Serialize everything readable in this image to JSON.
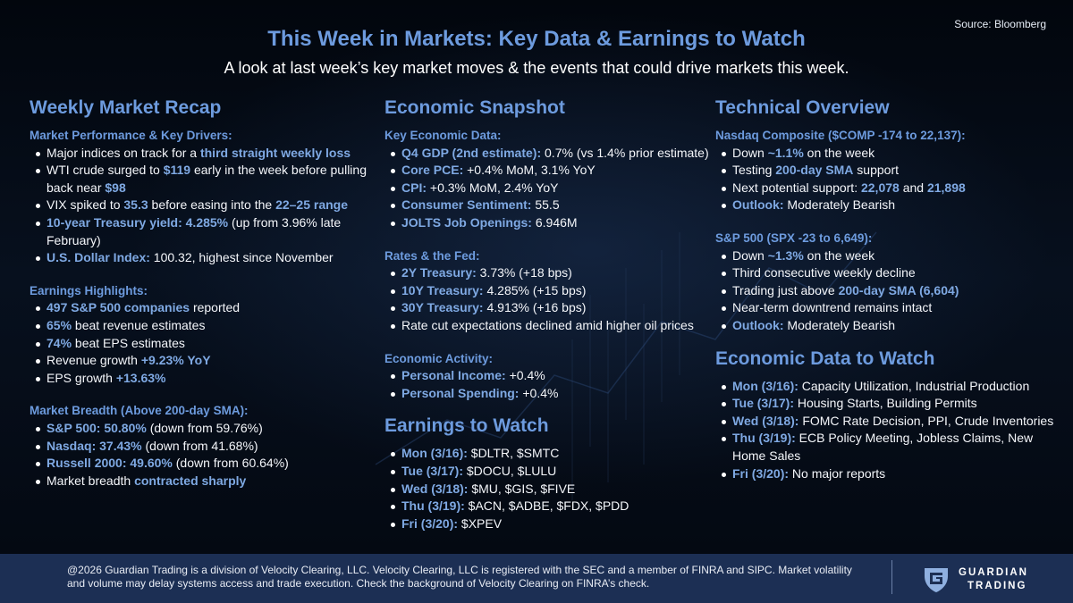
{
  "source": "Source: Bloomberg",
  "title": "This Week in Markets: Key Data & Earnings to Watch",
  "subtitle": "A look at last week’s key market moves & the events that could drive markets this week.",
  "recap": {
    "heading": "Weekly Market Recap",
    "performance": {
      "label": "Market Performance & Key Drivers:",
      "b1": {
        "t1": "Major indices on track for a ",
        "h1": "third straight weekly loss"
      },
      "b2": {
        "t1": "WTI crude surged to ",
        "h1": "$119",
        "t2": " early in the week before pulling back near ",
        "h2": "$98"
      },
      "b3": {
        "t1": "VIX spiked to ",
        "h1": "35.3",
        "t2": " before easing into the ",
        "h2": "22–25 range"
      },
      "b4": {
        "h1": "10-year Treasury yield: 4.285%",
        "t1": " (up from 3.96% late February)"
      },
      "b5": {
        "h1": "U.S. Dollar Index:",
        "t1": " 100.32, highest since November"
      }
    },
    "earnings": {
      "label": "Earnings Highlights:",
      "b1": {
        "h1": "497 S&P 500 companies",
        "t1": " reported"
      },
      "b2": {
        "h1": "65%",
        "t1": " beat revenue estimates"
      },
      "b3": {
        "h1": "74%",
        "t1": " beat EPS estimates"
      },
      "b4": {
        "t1": "Revenue growth ",
        "h1": "+9.23% YoY"
      },
      "b5": {
        "t1": "EPS growth ",
        "h1": "+13.63%"
      }
    },
    "breadth": {
      "label": "Market Breadth (Above 200-day SMA):",
      "b1": {
        "h1": "S&P 500: 50.80%",
        "t1": " (down from 59.76%)"
      },
      "b2": {
        "h1": "Nasdaq: 37.43%",
        "t1": " (down from 41.68%)"
      },
      "b3": {
        "h1": "Russell 2000: 49.60%",
        "t1": " (down from 60.64%)"
      },
      "b4": {
        "t1": "Market breadth ",
        "h1": "contracted sharply"
      }
    }
  },
  "snapshot": {
    "heading": "Economic Snapshot",
    "key": {
      "label": "Key Economic Data:",
      "b1": {
        "h1": "Q4 GDP (2nd estimate):",
        "t1": " 0.7% (vs 1.4% prior estimate)"
      },
      "b2": {
        "h1": "Core PCE:",
        "t1": " +0.4% MoM, 3.1% YoY"
      },
      "b3": {
        "h1": "CPI:",
        "t1": " +0.3% MoM, 2.4% YoY"
      },
      "b4": {
        "h1": "Consumer Sentiment:",
        "t1": " 55.5"
      },
      "b5": {
        "h1": "JOLTS Job Openings:",
        "t1": " 6.946M"
      }
    },
    "rates": {
      "label": "Rates & the Fed:",
      "b1": {
        "h1": "2Y Treasury:",
        "t1": " 3.73% (+18 bps)"
      },
      "b2": {
        "h1": "10Y Treasury:",
        "t1": " 4.285% (+15 bps)"
      },
      "b3": {
        "h1": "30Y Treasury:",
        "t1": " 4.913% (+16 bps)"
      },
      "b4": {
        "t1": "Rate cut expectations declined amid higher oil prices"
      }
    },
    "activity": {
      "label": "Economic Activity:",
      "b1": {
        "h1": "Personal Income:",
        "t1": " +0.4%"
      },
      "b2": {
        "h1": "Personal Spending:",
        "t1": " +0.4%"
      }
    }
  },
  "earnings_watch": {
    "heading": "Earnings to Watch",
    "b1": {
      "h1": "Mon (3/16):",
      "t1": " $DLTR, $SMTC"
    },
    "b2": {
      "h1": "Tue (3/17):",
      "t1": " $DOCU, $LULU"
    },
    "b3": {
      "h1": "Wed (3/18):",
      "t1": " $MU, $GIS, $FIVE"
    },
    "b4": {
      "h1": "Thu (3/19):",
      "t1": " $ACN, $ADBE, $FDX, $PDD"
    },
    "b5": {
      "h1": "Fri (3/20):",
      "t1": " $XPEV"
    }
  },
  "technical": {
    "heading": "Technical Overview",
    "nasdaq": {
      "label": "Nasdaq Composite ($COMP -174 to 22,137):",
      "b1": {
        "t1": "Down ",
        "h1": "~1.1%",
        "t2": " on the week"
      },
      "b2": {
        "t1": "Testing ",
        "h1": "200-day SMA",
        "t2": " support"
      },
      "b3": {
        "t1": "Next potential support: ",
        "h1": "22,078",
        "t2": " and ",
        "h2": "21,898"
      },
      "b4": {
        "h1": "Outlook:",
        "t1": " Moderately Bearish"
      }
    },
    "sp500": {
      "label": "S&P 500 (SPX -23 to 6,649):",
      "b1": {
        "t1": "Down ",
        "h1": "~1.3%",
        "t2": " on the week"
      },
      "b2": {
        "t1": "Third consecutive weekly decline"
      },
      "b3": {
        "t1": "Trading just above ",
        "h1": "200-day SMA (6,604)"
      },
      "b4": {
        "t1": "Near-term downtrend remains intact"
      },
      "b5": {
        "h1": "Outlook:",
        "t1": " Moderately Bearish"
      }
    }
  },
  "data_watch": {
    "heading": "Economic Data to Watch",
    "b1": {
      "h1": "Mon (3/16):",
      "t1": " Capacity Utilization, Industrial Production"
    },
    "b2": {
      "h1": "Tue (3/17):",
      "t1": " Housing Starts, Building Permits"
    },
    "b3": {
      "h1": "Wed (3/18):",
      "t1": " FOMC Rate Decision, PPI, Crude Inventories"
    },
    "b4": {
      "h1": "Thu (3/19):",
      "t1": " ECB Policy Meeting, Jobless Claims, New Home Sales"
    },
    "b5": {
      "h1": "Fri (3/20):",
      "t1": " No major reports"
    }
  },
  "footer": {
    "disclaimer": "@2026 Guardian Trading is a division of Velocity Clearing, LLC. Velocity Clearing, LLC is registered with the SEC and a member of FINRA and SIPC. Market volatility and volume may delay systems access and trade execution. Check the background of Velocity Clearing on FINRA’s check.",
    "logo_name": "GUARDIAN",
    "logo_sub": "TRADING"
  },
  "colors": {
    "accent": "#6d9bde",
    "highlight": "#7fa9e3",
    "footer_bg": "#1c2f54"
  }
}
